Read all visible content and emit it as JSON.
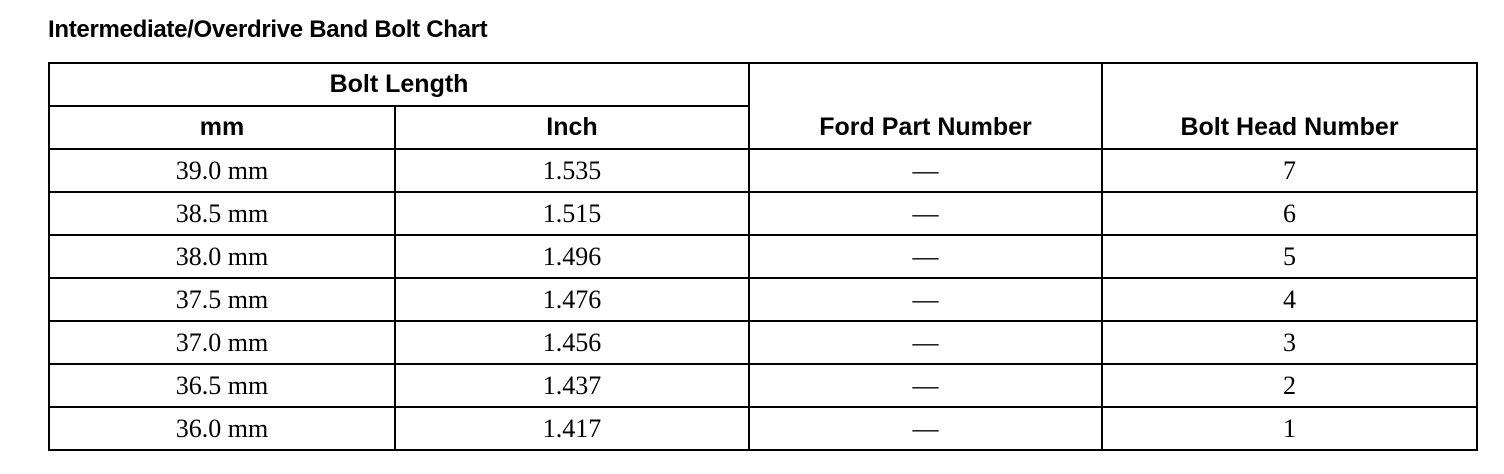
{
  "title": "Intermediate/Overdrive Band Bolt Chart",
  "headers": {
    "group": "Bolt Length",
    "mm": "mm",
    "inch": "Inch",
    "part": "Ford Part Number",
    "head": "Bolt Head Number"
  },
  "rows": [
    {
      "mm": "39.0 mm",
      "inch": "1.535",
      "part": "—",
      "head": "7"
    },
    {
      "mm": "38.5 mm",
      "inch": "1.515",
      "part": "—",
      "head": "6"
    },
    {
      "mm": "38.0 mm",
      "inch": "1.496",
      "part": "—",
      "head": "5"
    },
    {
      "mm": "37.5 mm",
      "inch": "1.476",
      "part": "—",
      "head": "4"
    },
    {
      "mm": "37.0 mm",
      "inch": "1.456",
      "part": "—",
      "head": "3"
    },
    {
      "mm": "36.5 mm",
      "inch": "1.437",
      "part": "—",
      "head": "2"
    },
    {
      "mm": "36.0 mm",
      "inch": "1.417",
      "part": "—",
      "head": "1"
    }
  ]
}
